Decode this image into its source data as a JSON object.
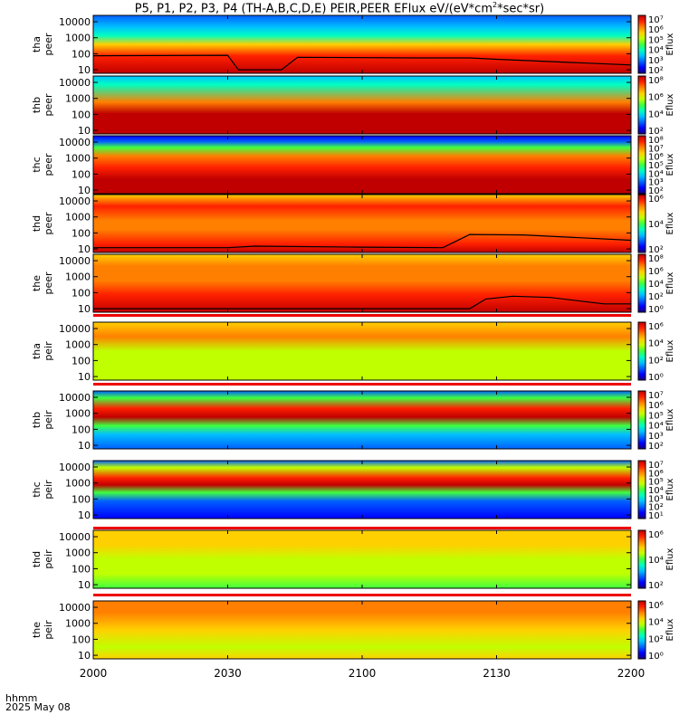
{
  "title": {
    "prefix": "P5, P1, P2, P3, P4 (TH-A,B,C,D,E) PEIR,PEER EFlux eV/(eV*cm",
    "sup": "2",
    "suffix": "*sec*sr)"
  },
  "footer": {
    "time_label": "hhmm",
    "date_label": "2025 May 08"
  },
  "colors": {
    "spectrogram_scale": [
      "#1a0080",
      "#0000ff",
      "#0060ff",
      "#00c0ff",
      "#00ffc0",
      "#40ff40",
      "#c0ff00",
      "#ffd000",
      "#ff8000",
      "#ff2000",
      "#c00000"
    ],
    "black_curve": "#000000",
    "separator_red": "#ee0000"
  },
  "chart_data": {
    "type": "heatmap",
    "title": "P5, P1, P2, P3, P4 (TH-A,B,C,D,E) PEIR,PEER EFlux eV/(eV*cm^2*sec*sr)",
    "x_axis": {
      "label": "hhmm",
      "date": "2025 May 08",
      "ticks": [
        "2000",
        "2030",
        "2100",
        "2130",
        "2200"
      ],
      "range": [
        "2000",
        "2200"
      ]
    },
    "y_ticks": [
      "10",
      "100",
      "1000",
      "10000"
    ],
    "y_scale": "log",
    "colorbar_label": "Eflux",
    "panels": [
      {
        "probe": "tha",
        "species": "peer",
        "ylabel": [
          "tha",
          "peer"
        ],
        "cbar_ticks": [
          "10²",
          "10³",
          "10⁴",
          "10⁵",
          "10⁶",
          "10⁷"
        ],
        "boundary_curve": [
          [
            0,
            75
          ],
          [
            0.25,
            80
          ],
          [
            0.27,
            10
          ],
          [
            0.35,
            10
          ],
          [
            0.38,
            60
          ],
          [
            0.6,
            55
          ],
          [
            0.7,
            55
          ],
          [
            0.75,
            45
          ],
          [
            1,
            20
          ]
        ]
      },
      {
        "probe": "thb",
        "species": "peer",
        "ylabel": [
          "thb",
          "peer"
        ],
        "cbar_ticks": [
          "10²",
          "10⁴",
          "10⁶",
          "10⁸"
        ],
        "boundary_curve": []
      },
      {
        "probe": "thc",
        "species": "peer",
        "ylabel": [
          "thc",
          "peer"
        ],
        "cbar_ticks": [
          "10²",
          "10³",
          "10⁴",
          "10⁵",
          "10⁶",
          "10⁷",
          "10⁸"
        ],
        "boundary_curve": []
      },
      {
        "probe": "thd",
        "species": "peer",
        "ylabel": [
          "thd",
          "peer"
        ],
        "cbar_ticks": [
          "10²",
          "10⁴",
          "10⁶"
        ],
        "boundary_curve": [
          [
            0,
            12
          ],
          [
            0.25,
            12
          ],
          [
            0.3,
            15
          ],
          [
            0.5,
            13
          ],
          [
            0.65,
            12
          ],
          [
            0.7,
            80
          ],
          [
            0.8,
            75
          ],
          [
            1,
            35
          ]
        ]
      },
      {
        "probe": "the",
        "species": "peer",
        "ylabel": [
          "the",
          "peer"
        ],
        "cbar_ticks": [
          "10⁰",
          "10²",
          "10⁴",
          "10⁶",
          "10⁸"
        ],
        "boundary_curve": [
          [
            0,
            10
          ],
          [
            0.7,
            10
          ],
          [
            0.73,
            40
          ],
          [
            0.78,
            60
          ],
          [
            0.85,
            50
          ],
          [
            0.95,
            20
          ],
          [
            1,
            20
          ]
        ]
      },
      {
        "probe": "tha",
        "species": "peir",
        "ylabel": [
          "tha",
          "peir"
        ],
        "cbar_ticks": [
          "10⁰",
          "10²",
          "10⁴",
          "10⁶"
        ],
        "boundary_curve": []
      },
      {
        "probe": "thb",
        "species": "peir",
        "ylabel": [
          "thb",
          "peir"
        ],
        "cbar_ticks": [
          "10²",
          "10³",
          "10⁴",
          "10⁵",
          "10⁶",
          "10⁷"
        ],
        "boundary_curve": []
      },
      {
        "probe": "thc",
        "species": "peir",
        "ylabel": [
          "thc",
          "peir"
        ],
        "cbar_ticks": [
          "10¹",
          "10²",
          "10³",
          "10⁴",
          "10⁵",
          "10⁶",
          "10⁷"
        ],
        "boundary_curve": []
      },
      {
        "probe": "thd",
        "species": "peir",
        "ylabel": [
          "thd",
          "peir"
        ],
        "cbar_ticks": [
          "10²",
          "10⁴",
          "10⁶"
        ],
        "boundary_curve": []
      },
      {
        "probe": "the",
        "species": "peir",
        "ylabel": [
          "the",
          "peir"
        ],
        "cbar_ticks": [
          "10⁰",
          "10²",
          "10⁴",
          "10⁶"
        ],
        "boundary_curve": []
      }
    ]
  }
}
